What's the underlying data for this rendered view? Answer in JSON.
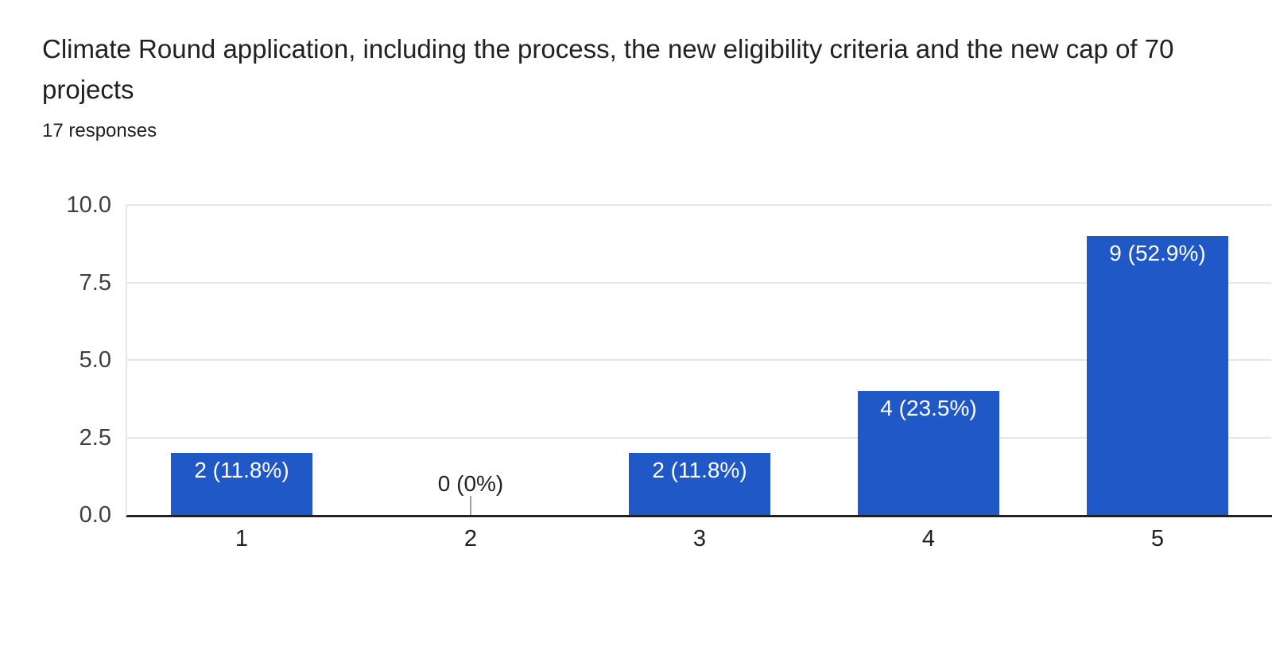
{
  "header": {
    "title": "Climate Round application, including the process, the new eligibility criteria and the new cap of 70 projects",
    "responses": "17 responses"
  },
  "chart_data": {
    "type": "bar",
    "title": "Climate Round application, including the process, the new eligibility criteria and the new cap of 70 projects",
    "subtitle": "17 responses",
    "categories": [
      "1",
      "2",
      "3",
      "4",
      "5"
    ],
    "values": [
      2,
      0,
      2,
      4,
      9
    ],
    "bar_labels": [
      "2 (11.8%)",
      "0 (0%)",
      "2 (11.8%)",
      "4 (23.5%)",
      "9 (52.9%)"
    ],
    "y_ticks": [
      "10.0",
      "7.5",
      "5.0",
      "2.5",
      "0.0"
    ],
    "ylim": [
      0,
      10
    ],
    "xlabel": "",
    "ylabel": "",
    "grid": true,
    "legend": "none",
    "bar_color": "#2058c8",
    "gridline_color": "#e6e6e6",
    "axis_color": "#212121",
    "zero_stub_color": "#9aa0a6"
  }
}
